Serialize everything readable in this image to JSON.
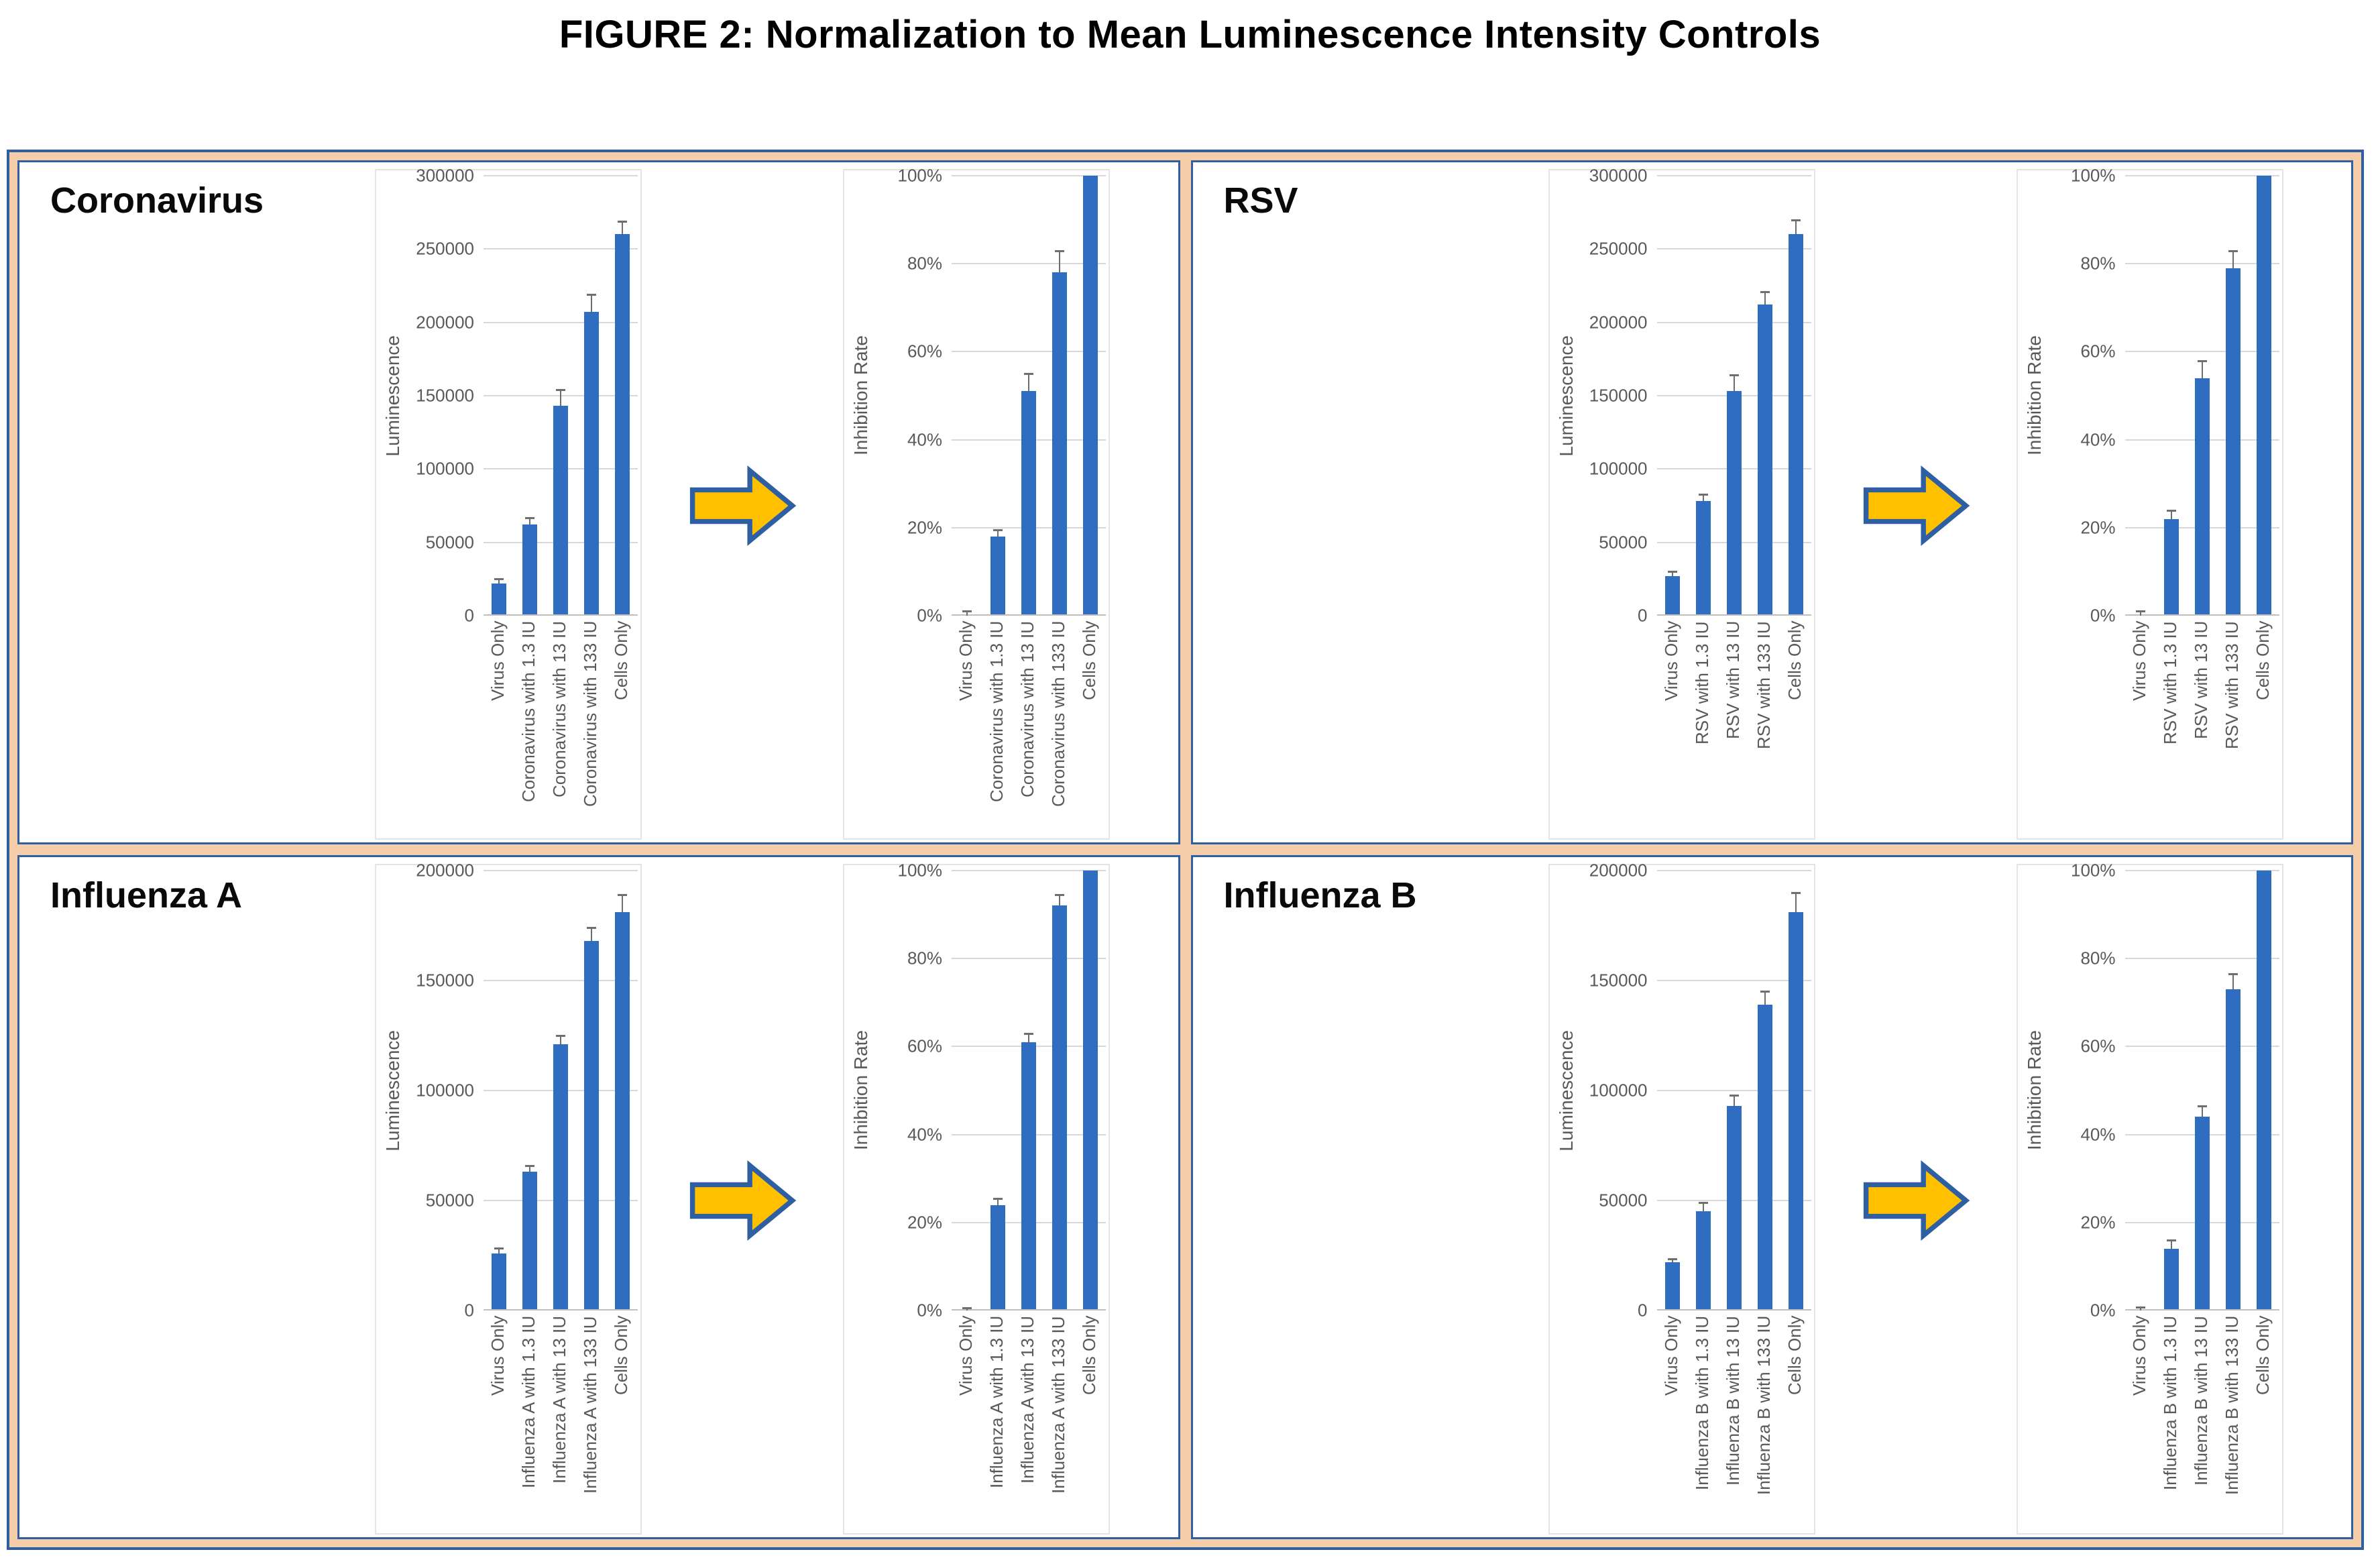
{
  "figure_title": "FIGURE 2: Normalization to Mean Luminescence Intensity Controls",
  "colors": {
    "bar": "#2E6DC0",
    "arrow_fill": "#FFC000",
    "arrow_border": "#2E5FA3",
    "frame_fill": "#F6CDA9",
    "frame_border": "#2E5FA3",
    "grid": "#D9D9D9",
    "baseline": "#BFBFBF",
    "axis_text": "#595959",
    "error_bar": "#6E6E6E"
  },
  "chart_data": [
    {
      "panel": "Coronavirus",
      "charts": [
        {
          "type": "bar",
          "ylabel": "Luminescence",
          "ylim": [
            0,
            300000
          ],
          "yticks": [
            "0",
            "50000",
            "100000",
            "150000",
            "200000",
            "250000",
            "300000"
          ],
          "categories": [
            "Virus Only",
            "Coronavirus with 1.3 IU",
            "Coronavirus with 13 IU",
            "Coronavirus with 133 IU",
            "Cells Only"
          ],
          "values": [
            22000,
            62000,
            143000,
            207000,
            260000
          ],
          "errors": [
            3000,
            5000,
            11000,
            12000,
            9000
          ],
          "grid": "on",
          "legend": "none"
        },
        {
          "type": "bar",
          "ylabel": "Inhibition Rate",
          "ylim": [
            0,
            100
          ],
          "yticks": [
            "0%",
            "20%",
            "40%",
            "60%",
            "80%",
            "100%"
          ],
          "categories": [
            "Virus Only",
            "Coronavirus with 1.3 IU",
            "Coronavirus with 13 IU",
            "Coronavirus with 133 IU",
            "Cells Only"
          ],
          "values": [
            0,
            18,
            51,
            78,
            100
          ],
          "errors": [
            1,
            1.5,
            4,
            5,
            0
          ],
          "grid": "on",
          "legend": "none"
        }
      ]
    },
    {
      "panel": "RSV",
      "charts": [
        {
          "type": "bar",
          "ylabel": "Luminescence",
          "ylim": [
            0,
            300000
          ],
          "yticks": [
            "0",
            "50000",
            "100000",
            "150000",
            "200000",
            "250000",
            "300000"
          ],
          "categories": [
            "Virus Only",
            "RSV with 1.3 IU",
            "RSV with 13 IU",
            "RSV with 133 IU",
            "Cells Only"
          ],
          "values": [
            27000,
            78000,
            153000,
            212000,
            260000
          ],
          "errors": [
            3000,
            5000,
            11000,
            9000,
            10000
          ],
          "grid": "on",
          "legend": "none"
        },
        {
          "type": "bar",
          "ylabel": "Inhibition Rate",
          "ylim": [
            0,
            100
          ],
          "yticks": [
            "0%",
            "20%",
            "40%",
            "60%",
            "80%",
            "100%"
          ],
          "categories": [
            "Virus Only",
            "RSV with 1.3 IU",
            "RSV with 13 IU",
            "RSV with 133 IU",
            "Cells Only"
          ],
          "values": [
            0,
            22,
            54,
            79,
            100
          ],
          "errors": [
            1,
            2,
            4,
            4,
            0
          ],
          "grid": "on",
          "legend": "none"
        }
      ]
    },
    {
      "panel": "Influenza A",
      "charts": [
        {
          "type": "bar",
          "ylabel": "Luminescence",
          "ylim": [
            0,
            200000
          ],
          "yticks": [
            "0",
            "50000",
            "100000",
            "150000",
            "200000"
          ],
          "categories": [
            "Virus Only",
            "Influenza A with 1.3 IU",
            "Influenza A with 13 IU",
            "Influenza A with 133 IU",
            "Cells Only"
          ],
          "values": [
            26000,
            63000,
            121000,
            168000,
            181000
          ],
          "errors": [
            2500,
            3000,
            4000,
            6000,
            8000
          ],
          "grid": "on",
          "legend": "none"
        },
        {
          "type": "bar",
          "ylabel": "Inhibition Rate",
          "ylim": [
            0,
            100
          ],
          "yticks": [
            "0%",
            "20%",
            "40%",
            "60%",
            "80%",
            "100%"
          ],
          "categories": [
            "Virus Only",
            "Influenza A with 1.3 IU",
            "Influenza A with 13 IU",
            "Influenza A with 133 IU",
            "Cells Only"
          ],
          "values": [
            0,
            24,
            61,
            92,
            100
          ],
          "errors": [
            0.6,
            1.5,
            2,
            2.5,
            0
          ],
          "grid": "on",
          "legend": "none"
        }
      ]
    },
    {
      "panel": "Influenza B",
      "charts": [
        {
          "type": "bar",
          "ylabel": "Luminescence",
          "ylim": [
            0,
            200000
          ],
          "yticks": [
            "0",
            "50000",
            "100000",
            "150000",
            "200000"
          ],
          "categories": [
            "Virus Only",
            "Influenza B with 1.3 IU",
            "Influenza B with 13 IU",
            "Influenza B with 133 IU",
            "Cells Only"
          ],
          "values": [
            22000,
            45000,
            93000,
            139000,
            181000
          ],
          "errors": [
            1500,
            4000,
            5000,
            6000,
            9000
          ],
          "grid": "on",
          "legend": "none"
        },
        {
          "type": "bar",
          "ylabel": "Inhibition Rate",
          "ylim": [
            0,
            100
          ],
          "yticks": [
            "0%",
            "20%",
            "40%",
            "60%",
            "80%",
            "100%"
          ],
          "categories": [
            "Virus Only",
            "Influenza B with 1.3 IU",
            "Influenza B with 13 IU",
            "Influenza B with 133 IU",
            "Cells Only"
          ],
          "values": [
            0,
            14,
            44,
            73,
            100
          ],
          "errors": [
            0.8,
            2,
            2.5,
            3.5,
            0
          ],
          "grid": "on",
          "legend": "none"
        }
      ]
    }
  ]
}
